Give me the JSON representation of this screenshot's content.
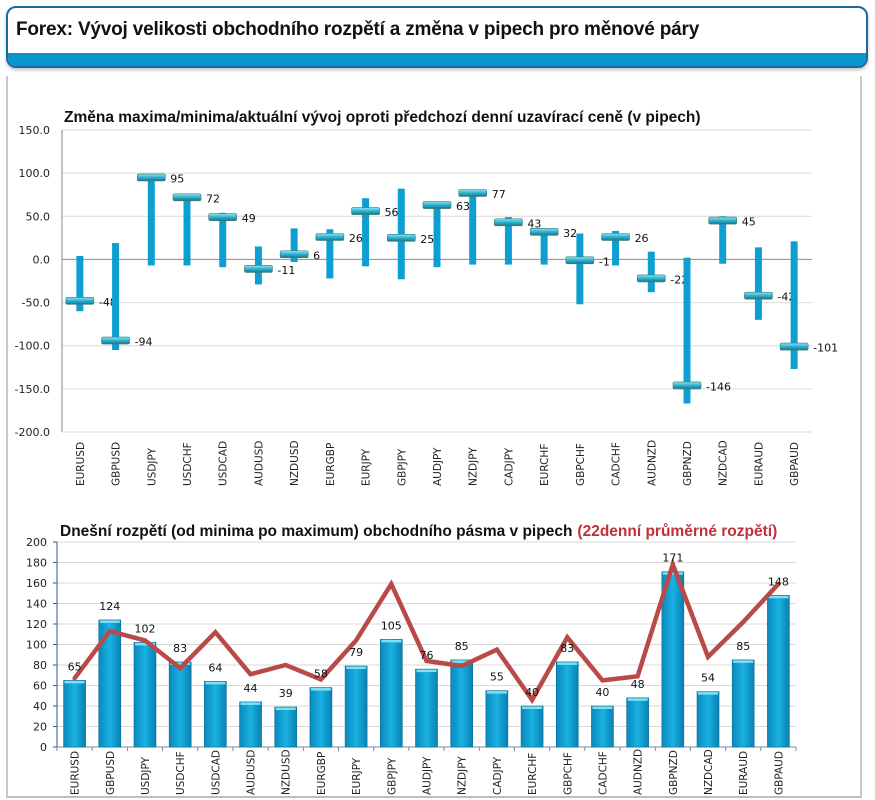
{
  "header": {
    "title": "Forex: Vývoj velikosti obchodního rozpětí a změna v pipech pro měnové páry"
  },
  "colors": {
    "accent": "#0a96cc",
    "bar": "#0e9fd2",
    "line": "#b94a48",
    "highlight_red": "#c0303a",
    "cap": "#5ac8d8"
  },
  "chart_data": [
    {
      "type": "bar",
      "subtype": "high-low-close",
      "title": "Změna maxima/minima/aktuální vývoj oproti předchozí denní uzavírací ceně (v pipech)",
      "xlabel": "",
      "ylabel": "",
      "ylim": [
        -200,
        150
      ],
      "yticks": [
        150,
        100,
        50,
        0,
        -50,
        -100,
        -150,
        -200
      ],
      "ytick_labels": [
        "150.0",
        "100.0",
        "50.0",
        "0.0",
        "-50.0",
        "-100.0",
        "-150.0",
        "-200.0"
      ],
      "grid": true,
      "categories": [
        "EURUSD",
        "GBPUSD",
        "USDJPY",
        "USDCHF",
        "USDCAD",
        "AUDUSD",
        "NZDUSD",
        "EURGBP",
        "EURJPY",
        "GBPJPY",
        "AUDJPY",
        "NZDJPY",
        "CADJPY",
        "EURCHF",
        "GBPCHF",
        "CADCHF",
        "AUDNZD",
        "GBPNZD",
        "NZDCAD",
        "EURAUD",
        "GBPAUD"
      ],
      "series": [
        {
          "name": "max",
          "values": [
            4,
            19,
            95,
            72,
            54,
            15,
            36,
            35,
            71,
            82,
            63,
            77,
            49,
            32,
            30,
            33,
            9,
            2,
            50,
            14,
            21
          ]
        },
        {
          "name": "min",
          "values": [
            -60,
            -105,
            -7,
            -7,
            -9,
            -29,
            -3,
            -22,
            -8,
            -23,
            -9,
            -6,
            -6,
            -6,
            -52,
            -7,
            -38,
            -167,
            -5,
            -70,
            -127
          ]
        },
        {
          "name": "current",
          "values": [
            -48,
            -94,
            95,
            72,
            49,
            -11,
            6,
            26,
            56,
            25,
            63,
            77,
            43,
            32,
            -1,
            26,
            -22,
            -146,
            45,
            -42,
            -101
          ]
        }
      ],
      "data_labels": [
        "-48",
        "-94",
        "95",
        "72",
        "49",
        "-11",
        "6",
        "26",
        "56",
        "25",
        "63",
        "77",
        "43",
        "32",
        "-1",
        "26",
        "-22",
        "-146",
        "45",
        "-42",
        "-101"
      ]
    },
    {
      "type": "bar",
      "subtype": "bar+line",
      "title": "Dnešní rozpětí (od minima po maximum) obchodního pásma v pipech",
      "title_suffix": "(22denní průměrné rozpětí)",
      "xlabel": "",
      "ylabel": "",
      "ylim": [
        0,
        200
      ],
      "yticks": [
        200,
        180,
        160,
        140,
        120,
        100,
        80,
        60,
        40,
        20,
        0
      ],
      "ytick_labels": [
        "200",
        "180",
        "160",
        "140",
        "120",
        "100",
        "80",
        "60",
        "40",
        "20",
        "0"
      ],
      "grid": true,
      "categories": [
        "EURUSD",
        "GBPUSD",
        "USDJPY",
        "USDCHF",
        "USDCAD",
        "AUDUSD",
        "NZDUSD",
        "EURGBP",
        "EURJPY",
        "GBPJPY",
        "AUDJPY",
        "NZDJPY",
        "CADJPY",
        "EURCHF",
        "GBPCHF",
        "CADCHF",
        "AUDNZD",
        "GBPNZD",
        "NZDCAD",
        "EURAUD",
        "GBPAUD"
      ],
      "series": [
        {
          "name": "Dnešní rozpětí",
          "type": "bar",
          "values": [
            65,
            124,
            102,
            83,
            64,
            44,
            39,
            58,
            79,
            105,
            76,
            85,
            55,
            40,
            83,
            40,
            48,
            171,
            54,
            85,
            148
          ]
        },
        {
          "name": "22denní průměrné rozpětí",
          "type": "line",
          "values": [
            67,
            113,
            104,
            77,
            112,
            71,
            80,
            66,
            104,
            159,
            84,
            79,
            95,
            46,
            107,
            65,
            69,
            178,
            88,
            122,
            159
          ]
        }
      ],
      "data_labels": [
        "65",
        "124",
        "102",
        "83",
        "64",
        "44",
        "39",
        "58",
        "79",
        "105",
        "76",
        "85",
        "55",
        "40",
        "83",
        "40",
        "48",
        "171",
        "54",
        "85",
        "148"
      ]
    }
  ]
}
